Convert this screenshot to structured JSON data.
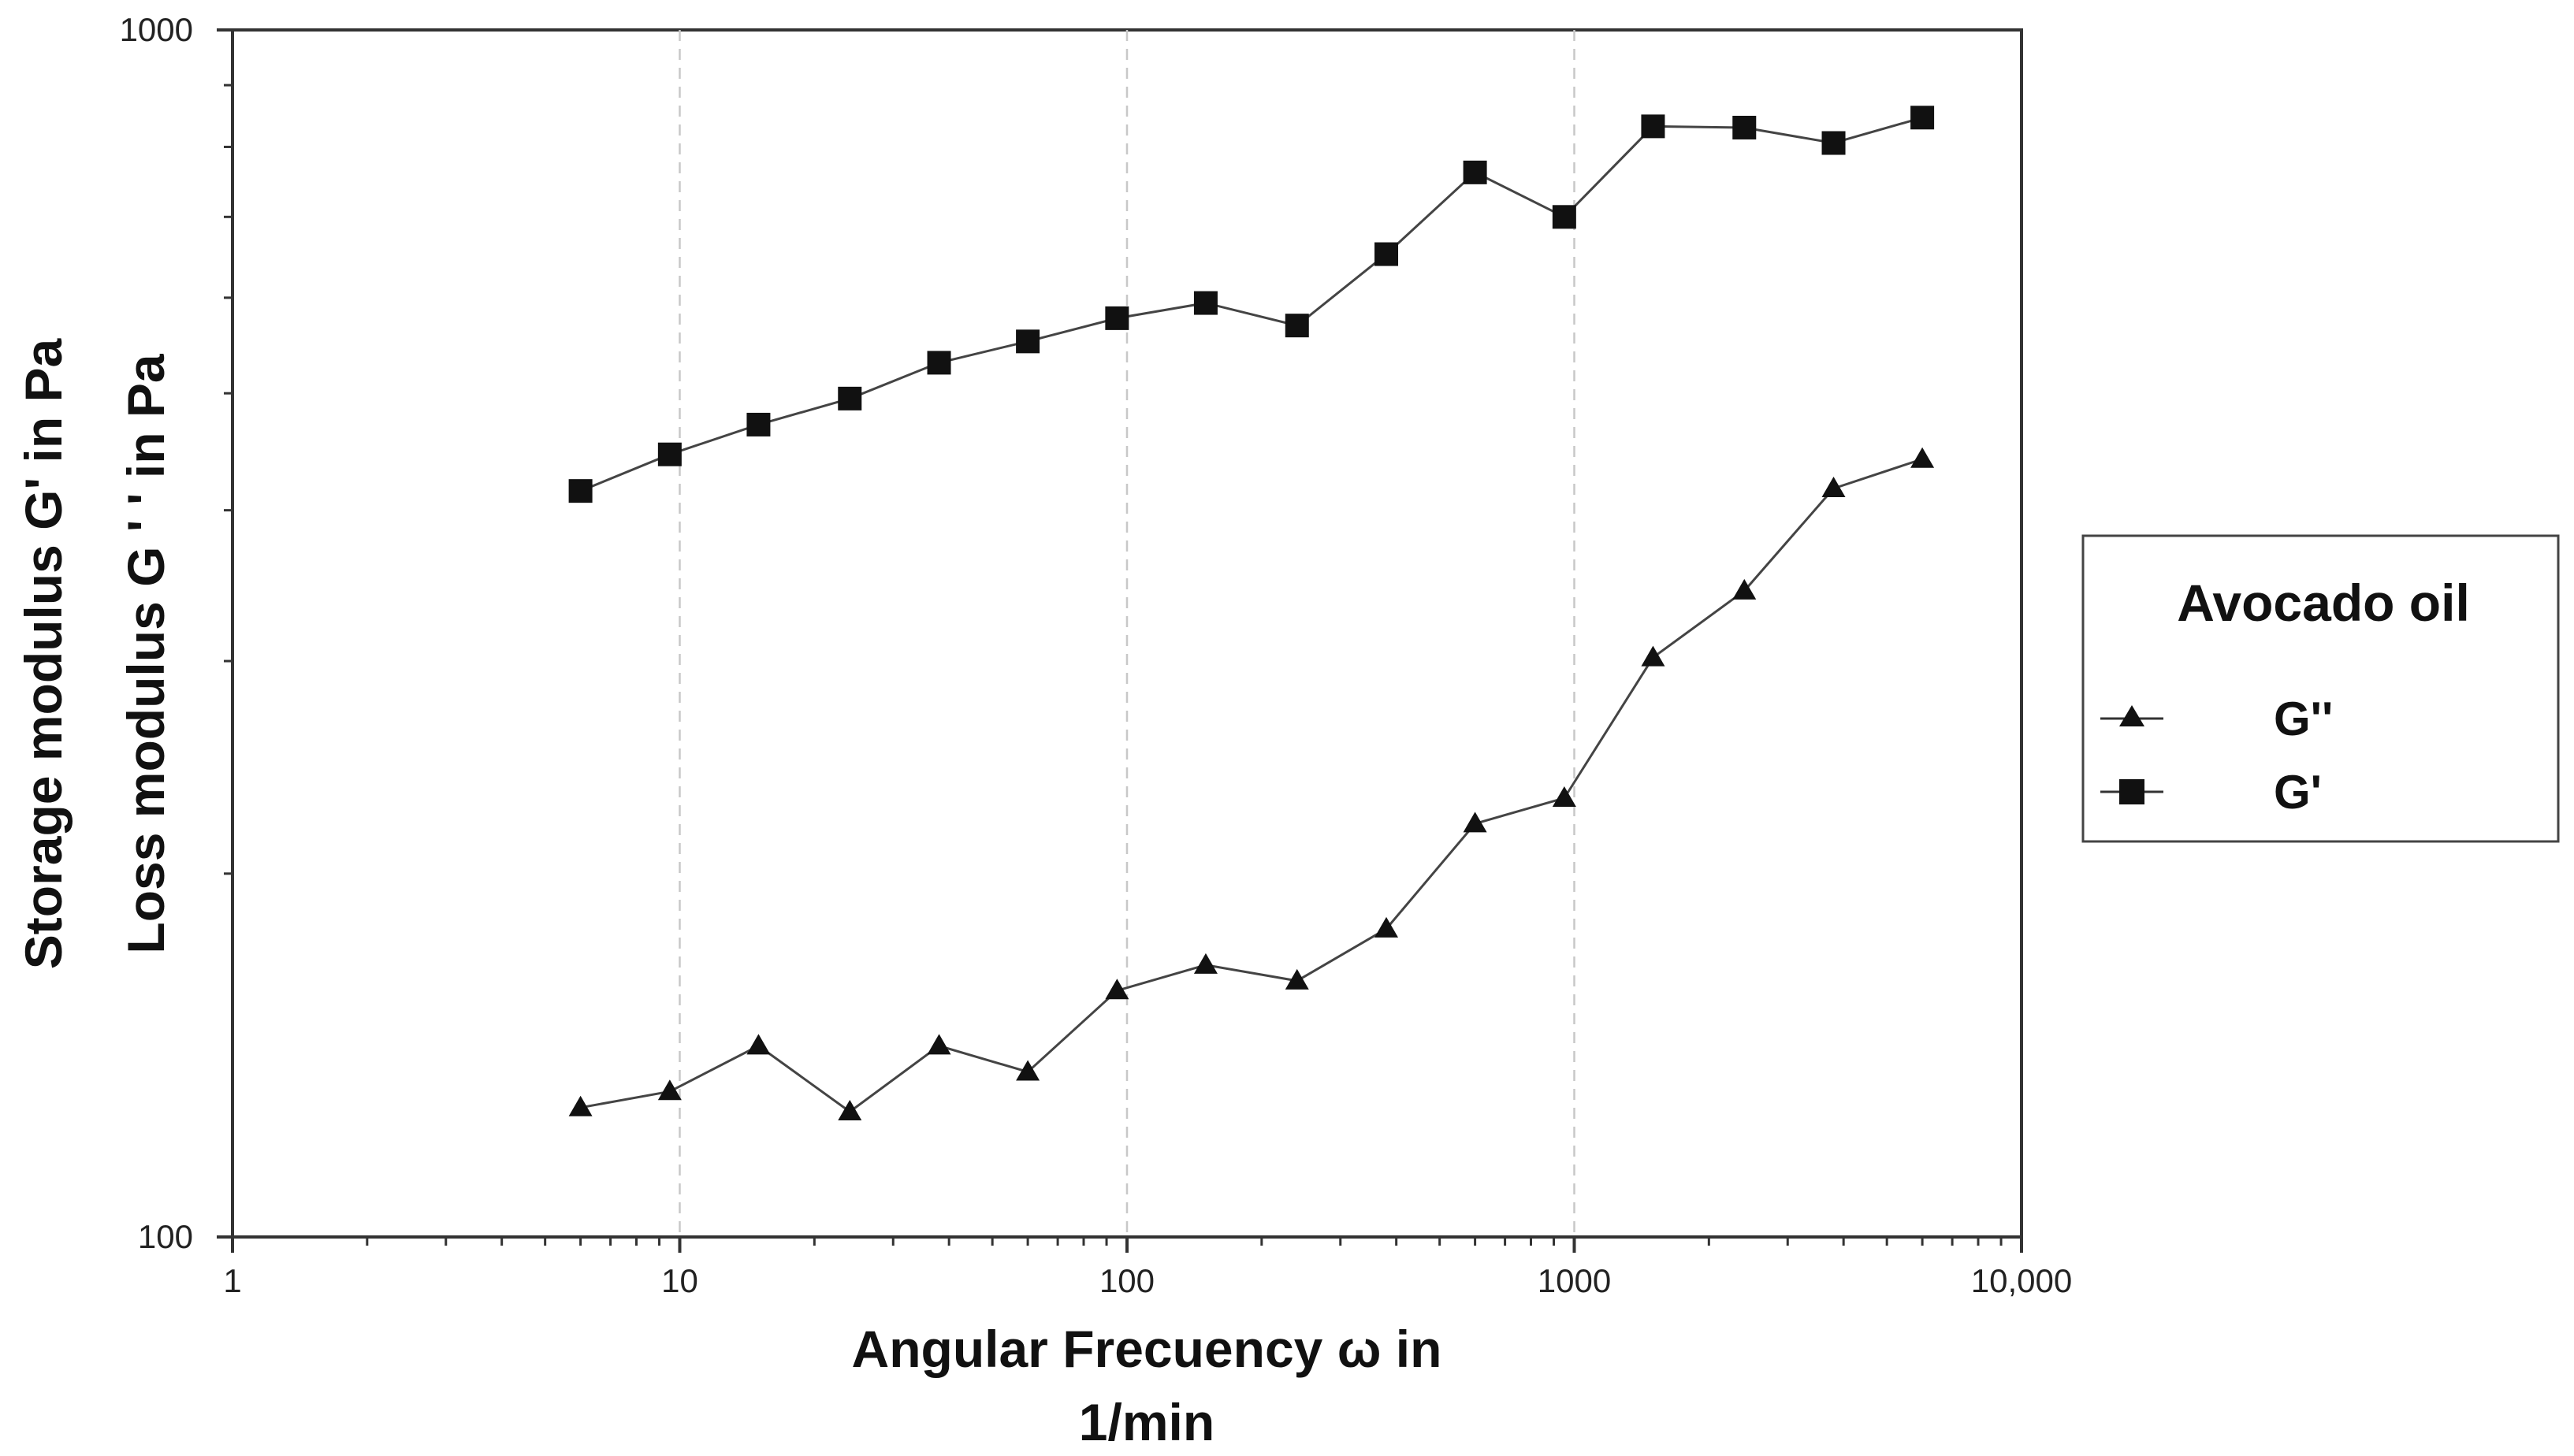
{
  "chart_data": {
    "type": "line",
    "xscale": "log",
    "yscale": "log",
    "xlim": [
      1,
      10000
    ],
    "ylim": [
      100,
      1000
    ],
    "x_ticks": [
      1,
      10,
      100,
      1000,
      10000
    ],
    "x_tick_labels": [
      "1",
      "10",
      "100",
      "1000",
      "10,000"
    ],
    "y_tick_labels": [
      "100",
      "1000"
    ],
    "xlabel_line1": "Angular Frecuency ω in",
    "xlabel_line2": "1/min",
    "ylabel_outer": "Storage modulus G' in Pa",
    "ylabel_inner": "Loss modulus G ' ' in Pa",
    "grid": "vertical dashed at decades",
    "legend": {
      "title": "Avocado oil",
      "placement": "right",
      "entries": [
        "G''",
        "G'"
      ]
    },
    "x": [
      6,
      9.5,
      15,
      24,
      38,
      60,
      95,
      150,
      240,
      380,
      600,
      950,
      1500,
      2400,
      3800,
      6000
    ],
    "series": [
      {
        "name": "G''",
        "marker": "triangle",
        "values": [
          128,
          132,
          144,
          127,
          144,
          137,
          160,
          168,
          163,
          180,
          220,
          231,
          302,
          343,
          417,
          441
        ]
      },
      {
        "name": "G'",
        "marker": "square",
        "values": [
          415,
          445,
          471,
          495,
          530,
          552,
          577,
          594,
          569,
          652,
          762,
          700,
          832,
          830,
          806,
          846
        ]
      }
    ]
  }
}
